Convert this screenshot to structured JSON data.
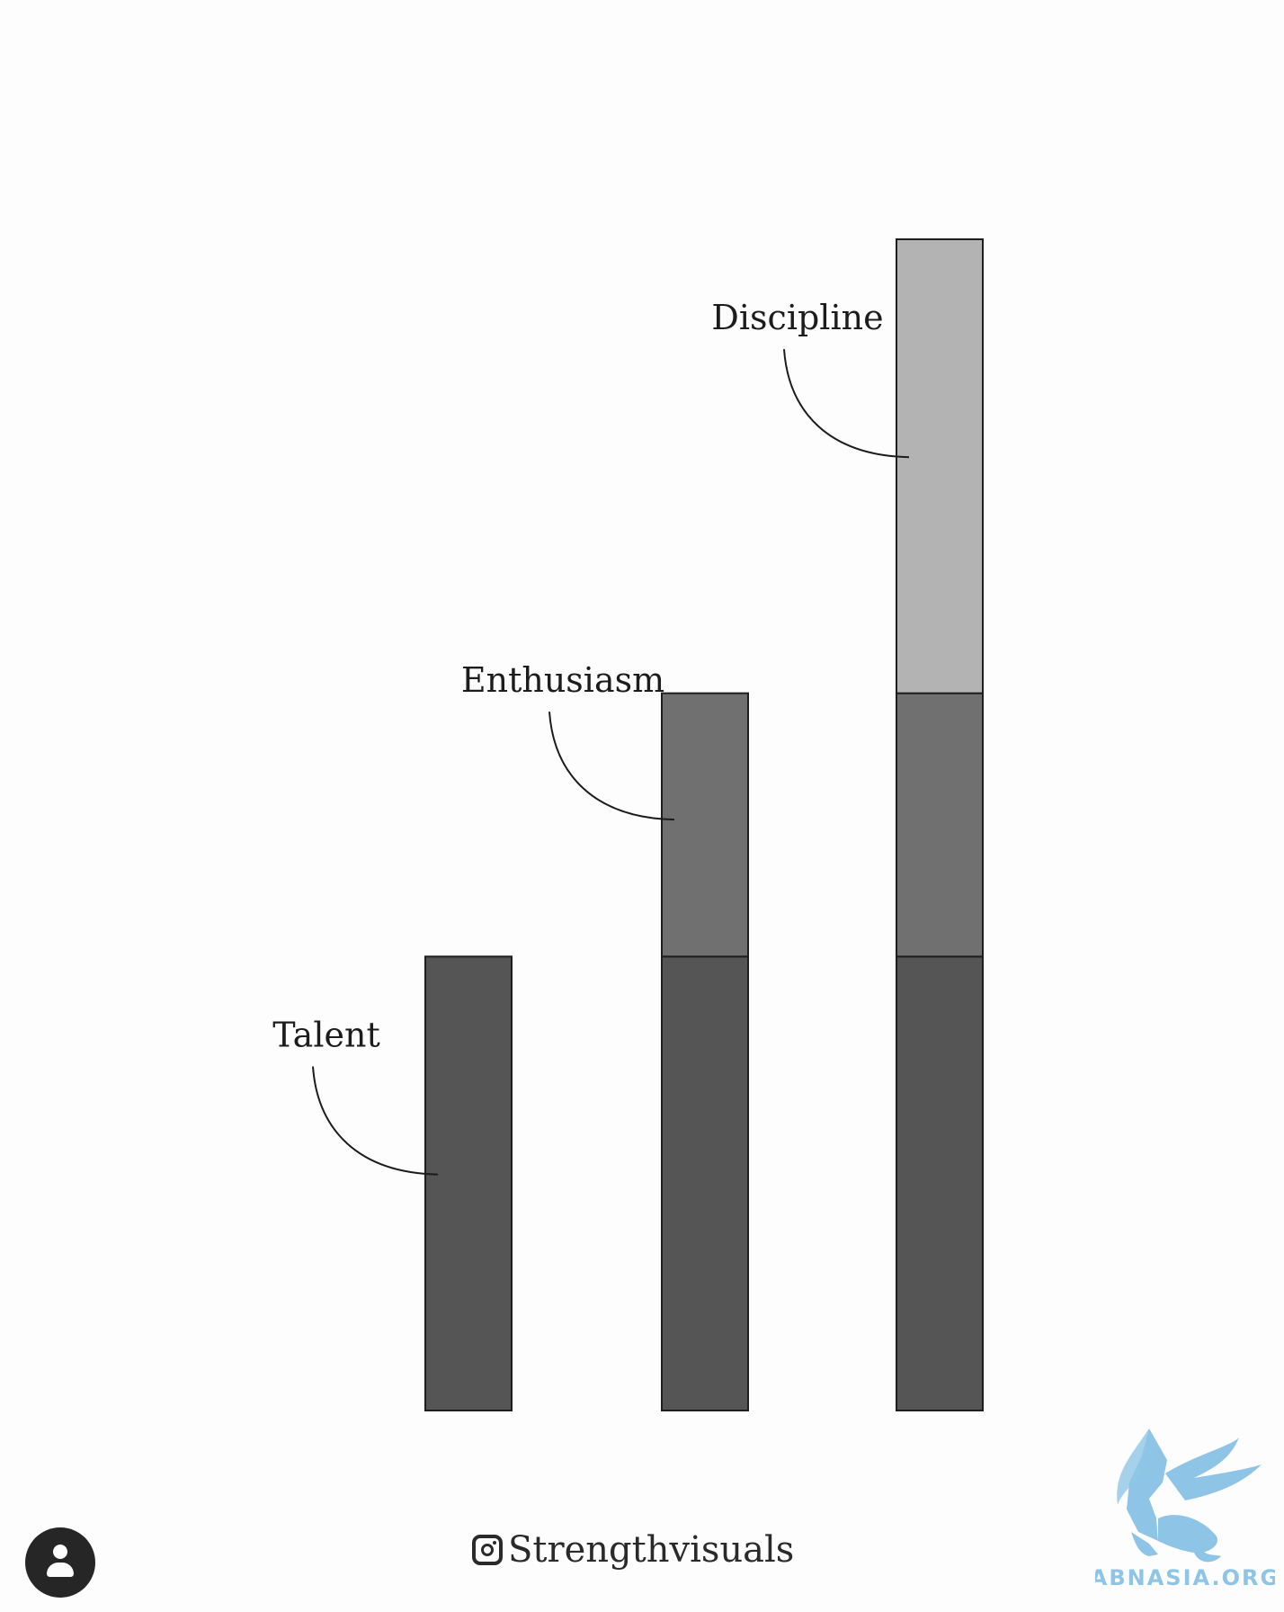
{
  "chart_data": {
    "type": "stacked-bar",
    "categories": [
      "",
      "",
      ""
    ],
    "series": [
      {
        "name": "Talent",
        "values": [
          1,
          1,
          1
        ],
        "color": "#555555"
      },
      {
        "name": "Enthusiasm",
        "values": [
          0,
          0.58,
          0.58
        ],
        "color": "#707070"
      },
      {
        "name": "Discipline",
        "values": [
          0,
          0,
          1
        ],
        "color": "#b3b3b3"
      }
    ],
    "annotations": [
      {
        "text": "Talent",
        "bar": 0,
        "series": "Talent"
      },
      {
        "text": "Enthusiasm",
        "bar": 1,
        "series": "Enthusiasm"
      },
      {
        "text": "Discipline",
        "bar": 2,
        "series": "Discipline"
      }
    ],
    "ylim": [
      0,
      2.58
    ],
    "axes_visible": false,
    "grid": false,
    "legend": "none"
  },
  "credit": {
    "handle": "Strengthvisuals",
    "icon": "instagram-icon"
  },
  "watermark": {
    "text": "ABNASIA.ORG",
    "color": "#8ec5e6",
    "icon": "griffin-logo"
  },
  "avatar": {
    "icon": "user-icon"
  }
}
